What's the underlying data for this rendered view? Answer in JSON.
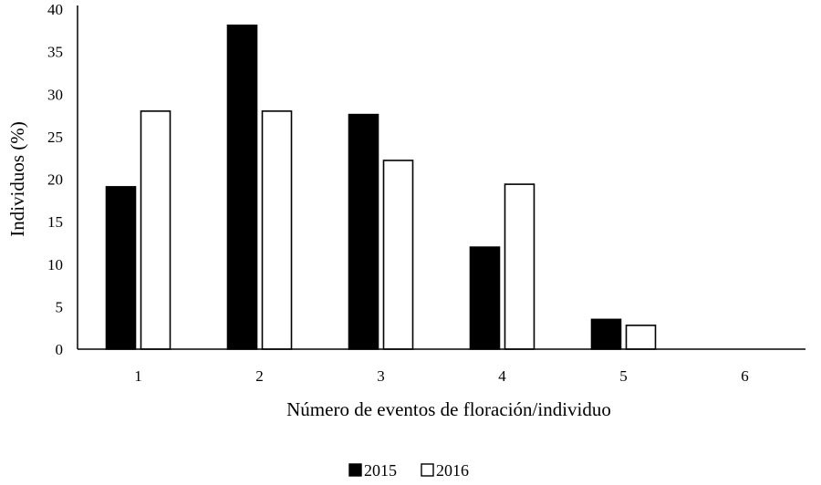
{
  "chart_data": {
    "type": "bar",
    "title": "",
    "categories": [
      "1",
      "2",
      "3",
      "4",
      "5",
      "6"
    ],
    "series": [
      {
        "name": "2015",
        "values": [
          19.1,
          38.1,
          27.6,
          12.0,
          3.5,
          0
        ],
        "color": "#000000",
        "fill": "solid"
      },
      {
        "name": "2016",
        "values": [
          28.0,
          28.0,
          22.2,
          19.4,
          2.8,
          0
        ],
        "color": "#ffffff",
        "fill": "outline"
      }
    ],
    "xlabel": "Número de eventos  de floración/individuo",
    "ylabel": "Individuos (%)",
    "ylim": [
      0,
      40
    ],
    "yticks": [
      "0",
      "5",
      "10",
      "15",
      "20",
      "25",
      "30",
      "35",
      "40"
    ],
    "grid": false,
    "legend_position": "bottom-center"
  }
}
